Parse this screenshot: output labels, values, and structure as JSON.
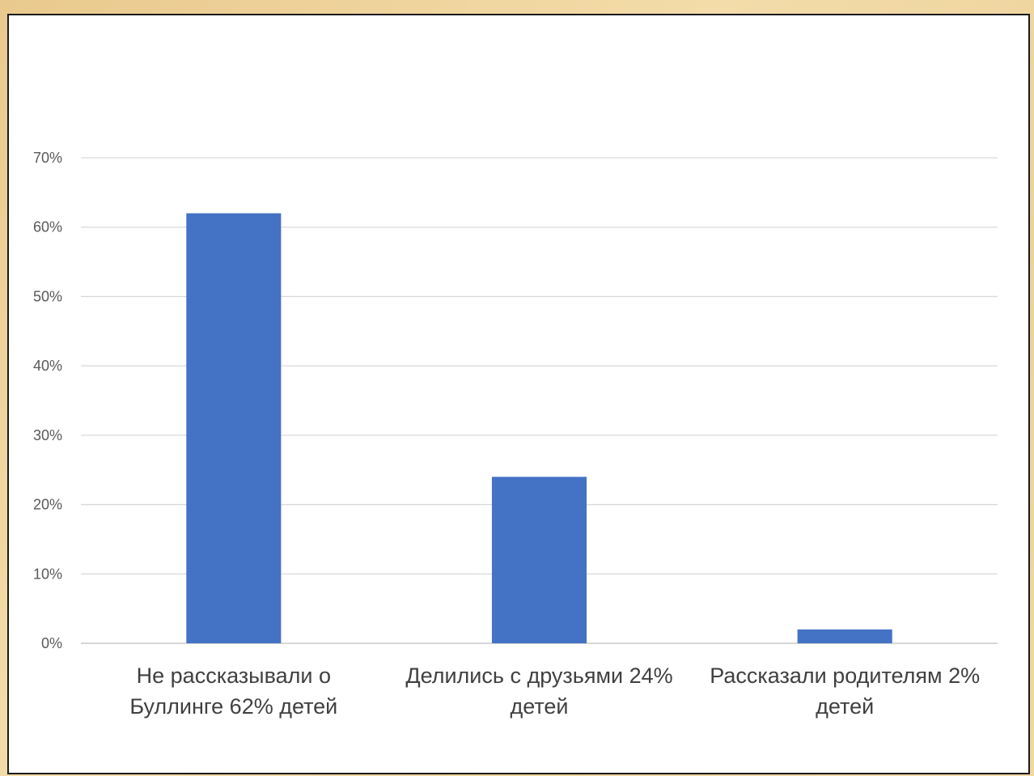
{
  "chart_data": {
    "type": "bar",
    "title": "",
    "xlabel": "",
    "ylabel": "",
    "categories": [
      [
        "Не рассказывали о",
        "Буллинге 62% детей"
      ],
      [
        "Делились с друзьями 24%",
        "детей"
      ],
      [
        "Рассказали родителям 2%",
        "детей"
      ]
    ],
    "values": [
      62,
      24,
      2
    ],
    "ylim": [
      0,
      70
    ],
    "yticks": [
      0,
      10,
      20,
      30,
      40,
      50,
      60,
      70
    ],
    "ytick_labels": [
      "0%",
      "10%",
      "20%",
      "30%",
      "40%",
      "50%",
      "60%",
      "70%"
    ],
    "grid": true,
    "legend": "none",
    "bar_color": "#4472c4"
  }
}
